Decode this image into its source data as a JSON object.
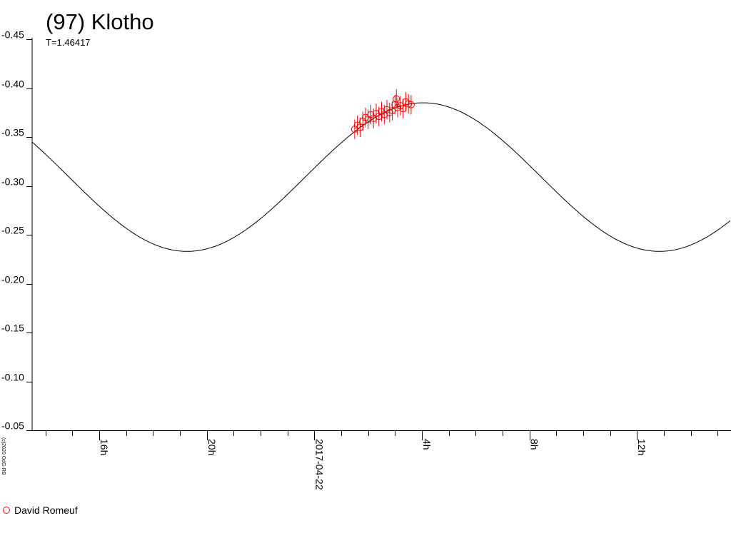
{
  "colors": {
    "model_curve": "#000000",
    "observations": "#ff0000",
    "axis": "#000000"
  },
  "chart_data": {
    "type": "scatter",
    "title": "(97) Klotho",
    "subtitle": "T=1.46417",
    "copyright": "(c)2020 OdG-RB",
    "x_axis": {
      "range_hours": [
        13.5,
        39.5
      ],
      "major_ticks": [
        {
          "hour": 16,
          "label": "16h"
        },
        {
          "hour": 20,
          "label": "20h"
        },
        {
          "hour": 24,
          "label": "2017-04-22"
        },
        {
          "hour": 28,
          "label": "4h"
        },
        {
          "hour": 32,
          "label": "8h"
        },
        {
          "hour": 36,
          "label": "12h"
        }
      ],
      "minor_tick_step_hours": 1
    },
    "y_axis": {
      "range": [
        -0.05,
        -0.45
      ],
      "inverted": true,
      "ticks": [
        {
          "value": -0.45,
          "label": "-0.45"
        },
        {
          "value": -0.4,
          "label": "-0.40"
        },
        {
          "value": -0.35,
          "label": "-0.35"
        },
        {
          "value": -0.3,
          "label": "-0.30"
        },
        {
          "value": -0.25,
          "label": "-0.25"
        },
        {
          "value": -0.2,
          "label": "-0.20"
        },
        {
          "value": -0.15,
          "label": "-0.15"
        },
        {
          "value": -0.1,
          "label": "-0.10"
        },
        {
          "value": -0.05,
          "label": "-0.05"
        }
      ]
    },
    "grid": false,
    "model_curve": {
      "type": "sinusoid",
      "period_hours": 17.57,
      "max_value": -0.385,
      "max_at_hour": 28.05,
      "min_value": -0.233,
      "min_at_hour": 19.25
    },
    "series": [
      {
        "name": "David Romeuf",
        "marker": "open-circle",
        "error": 0.01,
        "points": [
          {
            "x": 25.5,
            "y": -0.358
          },
          {
            "x": 25.6,
            "y": -0.362
          },
          {
            "x": 25.7,
            "y": -0.36
          },
          {
            "x": 25.8,
            "y": -0.366
          },
          {
            "x": 25.9,
            "y": -0.37
          },
          {
            "x": 26.0,
            "y": -0.368
          },
          {
            "x": 26.1,
            "y": -0.373
          },
          {
            "x": 26.2,
            "y": -0.369
          },
          {
            "x": 26.3,
            "y": -0.374
          },
          {
            "x": 26.4,
            "y": -0.371
          },
          {
            "x": 26.5,
            "y": -0.376
          },
          {
            "x": 26.6,
            "y": -0.373
          },
          {
            "x": 26.7,
            "y": -0.378
          },
          {
            "x": 26.8,
            "y": -0.375
          },
          {
            "x": 26.9,
            "y": -0.377
          },
          {
            "x": 27.0,
            "y": -0.383
          },
          {
            "x": 27.05,
            "y": -0.389
          },
          {
            "x": 27.1,
            "y": -0.38
          },
          {
            "x": 27.2,
            "y": -0.382
          },
          {
            "x": 27.3,
            "y": -0.379
          },
          {
            "x": 27.4,
            "y": -0.386
          },
          {
            "x": 27.5,
            "y": -0.384
          },
          {
            "x": 27.6,
            "y": -0.383
          }
        ]
      }
    ]
  }
}
